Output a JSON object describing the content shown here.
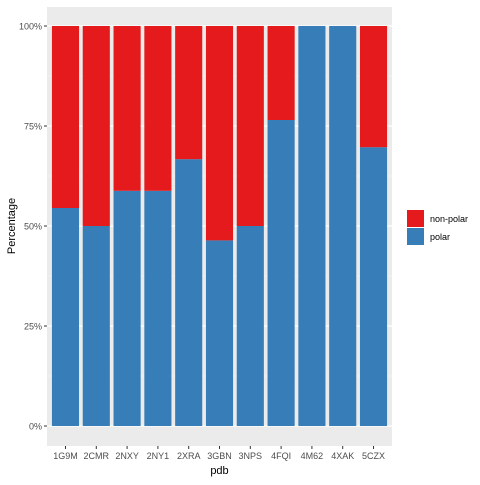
{
  "chart_data": {
    "type": "bar",
    "stacked": true,
    "percent": true,
    "categories": [
      "1G9M",
      "2CMR",
      "2NXY",
      "2NY1",
      "2XRA",
      "3GBN",
      "3NPS",
      "4FQI",
      "4M62",
      "4XAK",
      "5CZX"
    ],
    "series": [
      {
        "name": "polar",
        "color": "#377EB8",
        "values": [
          54.5,
          50,
          58.8,
          58.8,
          66.7,
          46.4,
          50,
          76.5,
          100,
          100,
          69.7
        ]
      },
      {
        "name": "non-polar",
        "color": "#E41A1C",
        "values": [
          45.5,
          50,
          41.2,
          41.2,
          33.3,
          53.6,
          50,
          23.5,
          0,
          0,
          30.3
        ]
      }
    ],
    "xlabel": "pdb",
    "ylabel": "Percentage",
    "ylim": [
      0,
      100
    ],
    "yticks": [
      0,
      25,
      50,
      75,
      100
    ],
    "ytick_labels": [
      "0%",
      "25%",
      "50%",
      "75%",
      "100%"
    ],
    "legend_entries": [
      "non-polar",
      "polar"
    ],
    "legend_position": "right",
    "grid": true,
    "panel_background": "#EBEBEB"
  }
}
